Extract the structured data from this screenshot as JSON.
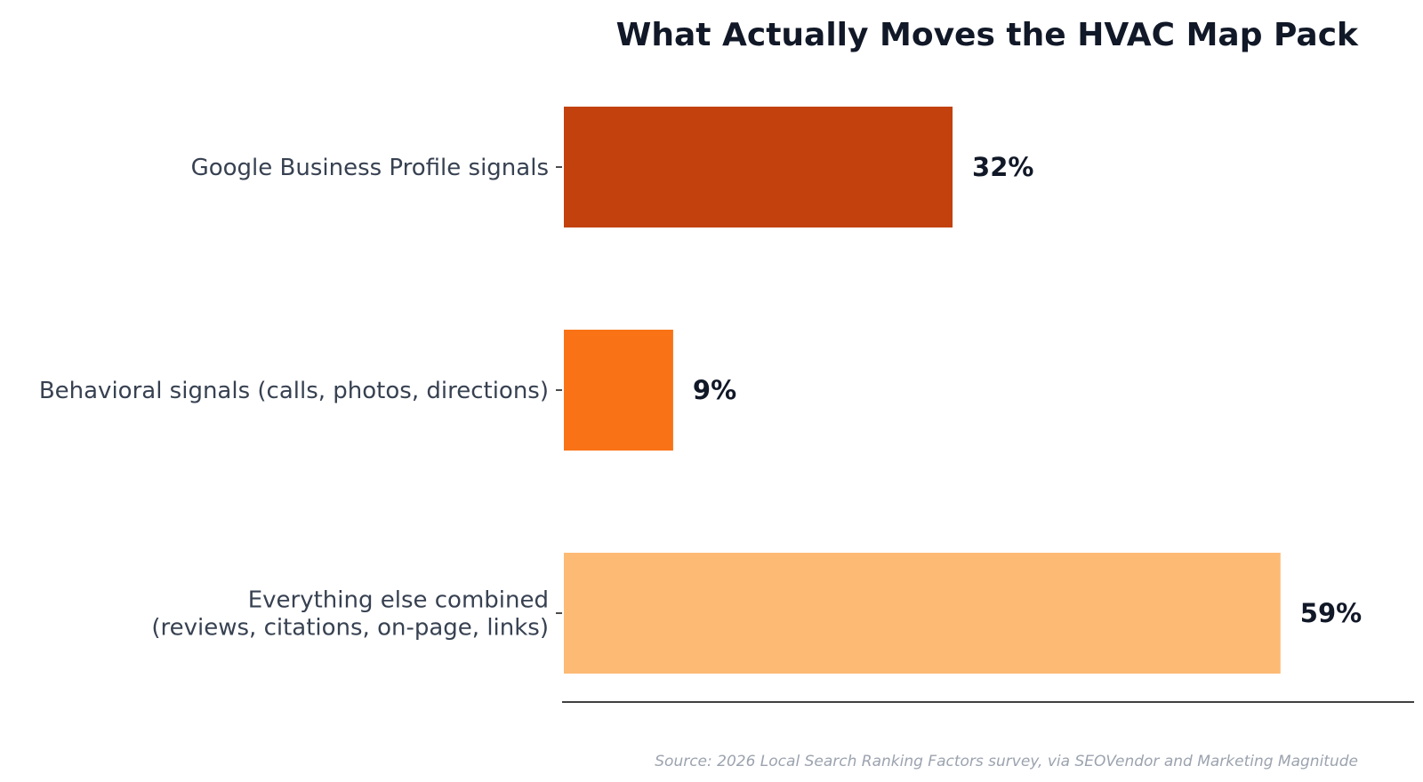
{
  "chart_data": {
    "type": "bar",
    "orientation": "horizontal",
    "title": "What Actually Moves the HVAC Map Pack",
    "categories": [
      [
        "Google Business Profile signals"
      ],
      [
        "Behavioral signals (calls, photos, directions)"
      ],
      [
        "Everything else combined",
        "(reviews, citations, on-page, links)"
      ]
    ],
    "values": [
      32,
      9,
      59
    ],
    "value_labels": [
      "32%",
      "9%",
      "59%"
    ],
    "colors": [
      "#c2410c",
      "#f97316",
      "#fdba74"
    ],
    "xlim": [
      0,
      70
    ],
    "xlabel": "",
    "ylabel": "",
    "grid": false,
    "legend": "none",
    "source": "Source: 2026 Local Search Ranking Factors survey, via SEOVendor and Marketing Magnitude"
  },
  "style": {
    "title_color": "#111827",
    "label_color": "#374151",
    "value_color": "#111827",
    "source_color": "#9ca3af",
    "axis_color": "#000000"
  }
}
